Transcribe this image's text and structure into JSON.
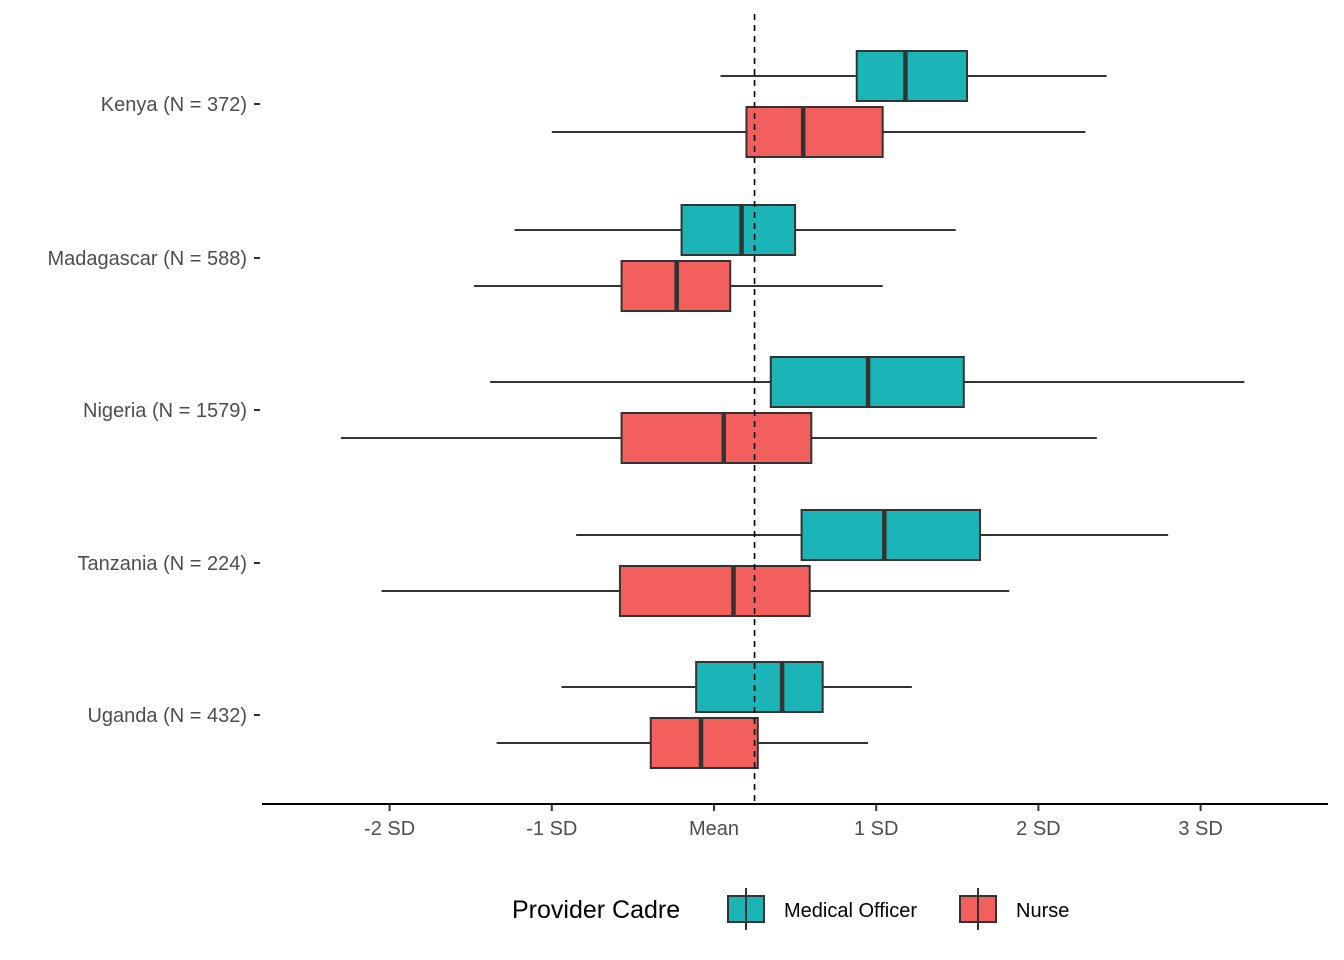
{
  "chart_data": {
    "type": "boxplot",
    "orientation": "horizontal",
    "categories": [
      "Kenya (N = 372)",
      "Madagascar (N = 588)",
      "Nigeria (N = 1579)",
      "Tanzania (N = 224)",
      "Uganda (N = 432)"
    ],
    "x_ticks": [
      {
        "value": -2,
        "label": "-2 SD"
      },
      {
        "value": -1,
        "label": "-1 SD"
      },
      {
        "value": 0,
        "label": "Mean"
      },
      {
        "value": 1,
        "label": "1 SD"
      },
      {
        "value": 2,
        "label": "2 SD"
      },
      {
        "value": 3,
        "label": "3 SD"
      }
    ],
    "xlim": [
      -2.8,
      3.8
    ],
    "reference_line": {
      "x": 0.25,
      "style": "dashed"
    },
    "grid": false,
    "legend": {
      "title": "Provider Cadre",
      "position": "bottom",
      "entries": [
        {
          "name": "Medical Officer",
          "color": "#1bb5b7"
        },
        {
          "name": "Nurse",
          "color": "#f25f5c"
        }
      ]
    },
    "series": [
      {
        "name": "Medical Officer",
        "color": "#1bb5b7",
        "boxes": [
          {
            "whisker_low": 0.04,
            "q1": 0.88,
            "median": 1.18,
            "q3": 1.56,
            "whisker_high": 2.42
          },
          {
            "whisker_low": -1.23,
            "q1": -0.2,
            "median": 0.17,
            "q3": 0.5,
            "whisker_high": 1.49
          },
          {
            "whisker_low": -1.38,
            "q1": 0.35,
            "median": 0.95,
            "q3": 1.54,
            "whisker_high": 3.27
          },
          {
            "whisker_low": -0.85,
            "q1": 0.54,
            "median": 1.05,
            "q3": 1.64,
            "whisker_high": 2.8
          },
          {
            "whisker_low": -0.94,
            "q1": -0.11,
            "median": 0.42,
            "q3": 0.67,
            "whisker_high": 1.22
          }
        ]
      },
      {
        "name": "Nurse",
        "color": "#f25f5c",
        "boxes": [
          {
            "whisker_low": -1.0,
            "q1": 0.2,
            "median": 0.55,
            "q3": 1.04,
            "whisker_high": 2.29
          },
          {
            "whisker_low": -1.48,
            "q1": -0.57,
            "median": -0.23,
            "q3": 0.1,
            "whisker_high": 1.04
          },
          {
            "whisker_low": -2.3,
            "q1": -0.57,
            "median": 0.06,
            "q3": 0.6,
            "whisker_high": 2.36
          },
          {
            "whisker_low": -2.05,
            "q1": -0.58,
            "median": 0.12,
            "q3": 0.59,
            "whisker_high": 1.82
          },
          {
            "whisker_low": -1.34,
            "q1": -0.39,
            "median": -0.08,
            "q3": 0.27,
            "whisker_high": 0.95
          }
        ]
      }
    ]
  }
}
